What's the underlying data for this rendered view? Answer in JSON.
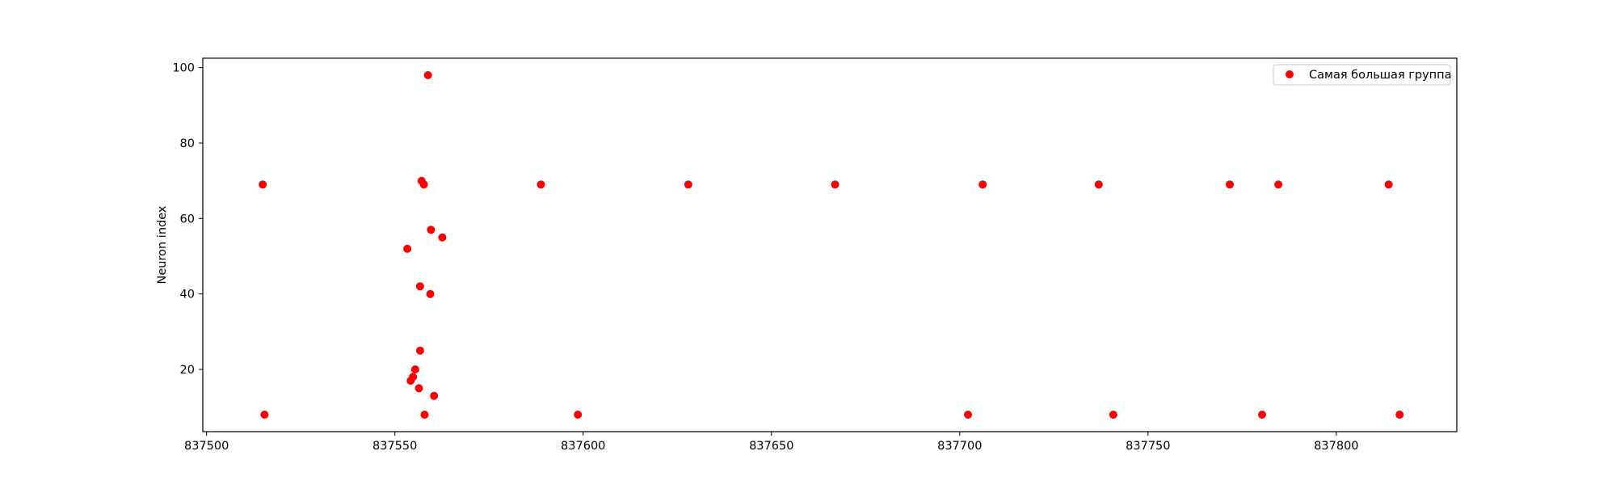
{
  "chart_data": {
    "type": "scatter",
    "title": "",
    "xlabel": "",
    "ylabel": "Neuron index",
    "xlim": [
      837499,
      837832
    ],
    "ylim": [
      3.5,
      102.5
    ],
    "xticks": [
      837500,
      837550,
      837600,
      837650,
      837700,
      837750,
      837800
    ],
    "yticks": [
      20,
      40,
      60,
      80,
      100
    ],
    "grid": false,
    "legend_position": "upper right",
    "series": [
      {
        "name": "Самая большая группа",
        "color": "#ff0000",
        "marker": "circle",
        "points": [
          {
            "x": 837514.9,
            "y": 69
          },
          {
            "x": 837515.4,
            "y": 8
          },
          {
            "x": 837553.3,
            "y": 52
          },
          {
            "x": 837554.2,
            "y": 17
          },
          {
            "x": 837554.8,
            "y": 18
          },
          {
            "x": 837555.4,
            "y": 20
          },
          {
            "x": 837556.4,
            "y": 15
          },
          {
            "x": 837556.7,
            "y": 42
          },
          {
            "x": 837556.7,
            "y": 25
          },
          {
            "x": 837557.1,
            "y": 70
          },
          {
            "x": 837557.7,
            "y": 69
          },
          {
            "x": 837557.9,
            "y": 8
          },
          {
            "x": 837558.8,
            "y": 98
          },
          {
            "x": 837559.4,
            "y": 40
          },
          {
            "x": 837559.6,
            "y": 57
          },
          {
            "x": 837560.4,
            "y": 13
          },
          {
            "x": 837562.6,
            "y": 55
          },
          {
            "x": 837588.8,
            "y": 69
          },
          {
            "x": 837598.6,
            "y": 8
          },
          {
            "x": 837627.9,
            "y": 69
          },
          {
            "x": 837666.9,
            "y": 69
          },
          {
            "x": 837702.2,
            "y": 8
          },
          {
            "x": 837706.1,
            "y": 69
          },
          {
            "x": 837736.9,
            "y": 69
          },
          {
            "x": 837740.8,
            "y": 8
          },
          {
            "x": 837771.7,
            "y": 69
          },
          {
            "x": 837780.3,
            "y": 8
          },
          {
            "x": 837784.6,
            "y": 69
          },
          {
            "x": 837813.9,
            "y": 69
          },
          {
            "x": 837816.8,
            "y": 8
          }
        ]
      }
    ]
  }
}
